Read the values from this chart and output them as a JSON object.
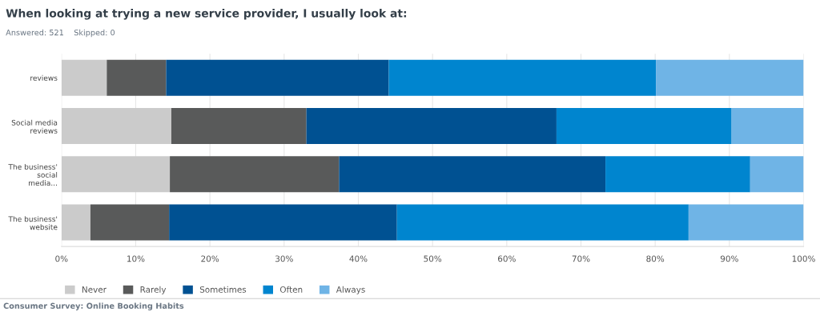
{
  "chart_data": {
    "type": "bar",
    "orientation": "horizontal",
    "stacked": true,
    "title": "When looking at trying a new service provider, I usually look at:",
    "subtitle": "Answered: 521    Skipped: 0",
    "categories": [
      "reviews",
      "Social media reviews",
      "The business' social media...",
      "The business' website"
    ],
    "series": [
      {
        "name": "Never",
        "color": "#cbcbcb",
        "values": [
          6.1,
          14.8,
          14.6,
          3.9
        ]
      },
      {
        "name": "Rarely",
        "color": "#595a5a",
        "values": [
          8.0,
          18.2,
          22.8,
          10.6
        ]
      },
      {
        "name": "Sometimes",
        "color": "#005192",
        "values": [
          30.0,
          33.7,
          35.9,
          30.7
        ]
      },
      {
        "name": "Often",
        "color": "#0085cf",
        "values": [
          36.0,
          23.6,
          19.5,
          39.3
        ]
      },
      {
        "name": "Always",
        "color": "#6fb4e6",
        "values": [
          19.9,
          9.7,
          7.2,
          15.5
        ]
      }
    ],
    "xlim": [
      0,
      100
    ],
    "xticks": [
      {
        "value": 0,
        "label": "0%"
      },
      {
        "value": 10,
        "label": "10%"
      },
      {
        "value": 20,
        "label": "20%"
      },
      {
        "value": 30,
        "label": "30%"
      },
      {
        "value": 40,
        "label": "40%"
      },
      {
        "value": 50,
        "label": "50%"
      },
      {
        "value": 60,
        "label": "60%"
      },
      {
        "value": 70,
        "label": "70%"
      },
      {
        "value": 80,
        "label": "80%"
      },
      {
        "value": 90,
        "label": "90%"
      },
      {
        "value": 100,
        "label": "100%"
      }
    ],
    "grid": "x",
    "legend": "bottom left",
    "annotations": [
      "Consumer Survey: Online Booking Habits"
    ]
  }
}
